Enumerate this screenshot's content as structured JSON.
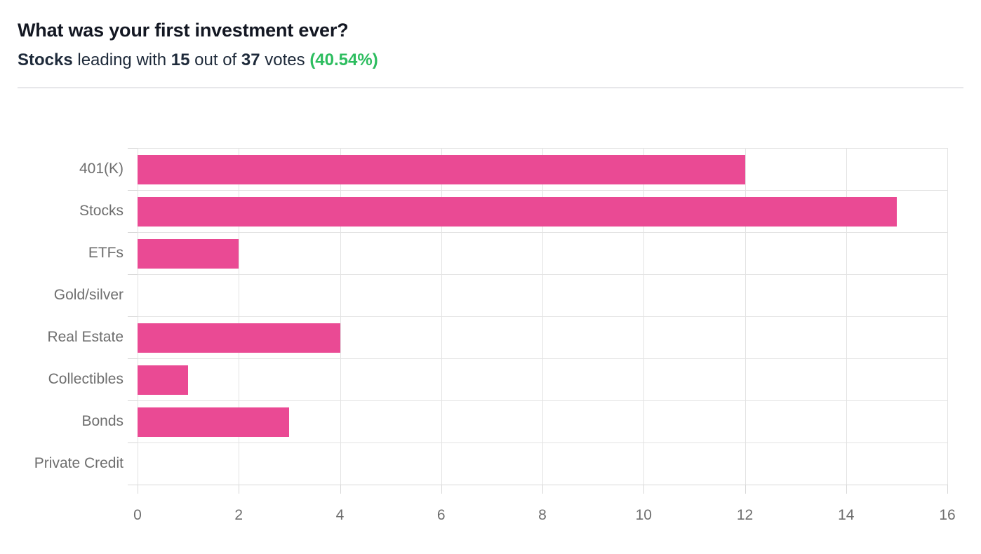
{
  "header": {
    "title": "What was your first investment ever?",
    "subtitle": {
      "leader": "Stocks",
      "lead_text": "leading with",
      "leader_votes": "15",
      "of_text": "out of",
      "total_votes": "37",
      "votes_text": "votes",
      "percent": "(40.54%)"
    }
  },
  "colors": {
    "bar_pink": "#ea4a94",
    "accent_green": "#2dbd5f",
    "title_text": "#131722",
    "subtitle_text": "#1e2a3a",
    "label_gray": "#6e6e6e",
    "gridline": "#e3e3e3",
    "axis": "#d8d8d8",
    "divider": "#e7e7ea"
  },
  "chart_data": {
    "type": "bar",
    "orientation": "horizontal",
    "title": "What was your first investment ever?",
    "subtitle": "Stocks leading with 15 out of 37 votes (40.54%)",
    "categories": [
      "401(K)",
      "Stocks",
      "ETFs",
      "Gold/silver",
      "Real Estate",
      "Collectibles",
      "Bonds",
      "Private Credit"
    ],
    "values": [
      12,
      15,
      2,
      0,
      4,
      1,
      3,
      0
    ],
    "x_ticks": [
      0,
      2,
      4,
      6,
      8,
      10,
      12,
      14,
      16
    ],
    "xlim": [
      0,
      16
    ],
    "xlabel": "",
    "ylabel": "",
    "grid": true,
    "legend": false,
    "bar_color": "#ea4a94",
    "total_votes": 37,
    "leading_category": "Stocks",
    "leading_votes": 15,
    "leading_percent": "40.54%"
  }
}
